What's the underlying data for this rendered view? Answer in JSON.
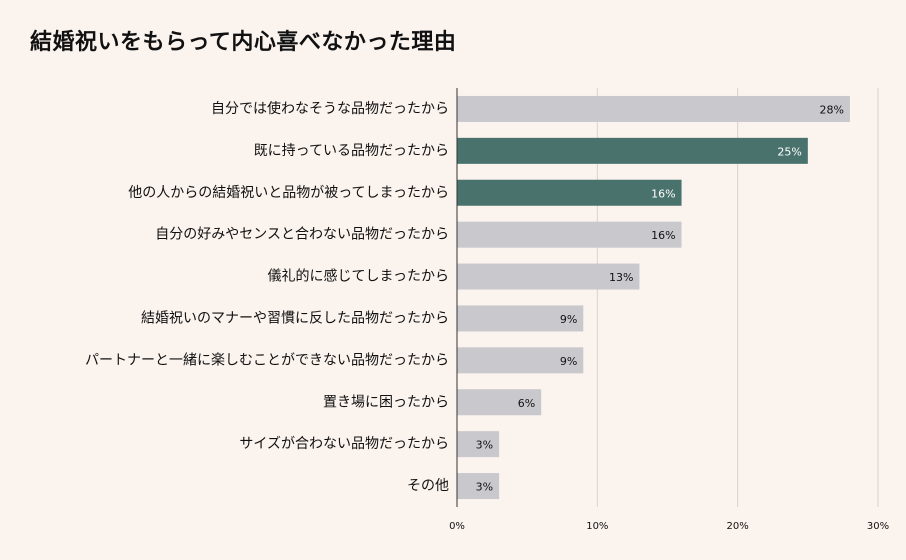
{
  "chart_data": {
    "type": "bar",
    "orientation": "horizontal",
    "title": "結婚祝いをもらって内心喜べなかった理由",
    "categories": [
      "自分では使わなそうな品物だったから",
      "既に持っている品物だったから",
      "他の人からの結婚祝いと品物が被ってしまったから",
      "自分の好みやセンスと合わない品物だったから",
      "儀礼的に感じてしまったから",
      "結婚祝いのマナーや習慣に反した品物だったから",
      "パートナーと一緒に楽しむことができない品物だったから",
      "置き場に困ったから",
      "サイズが合わない品物だったから",
      "その他"
    ],
    "values": [
      28,
      25,
      16,
      16,
      13,
      9,
      9,
      6,
      3,
      3
    ],
    "value_labels": [
      "28%",
      "25%",
      "16%",
      "16%",
      "13%",
      "9%",
      "9%",
      "6%",
      "3%",
      "3%"
    ],
    "highlighted": [
      false,
      true,
      true,
      false,
      false,
      false,
      false,
      false,
      false,
      false
    ],
    "xlim": [
      0,
      30
    ],
    "xticks": [
      0,
      10,
      20,
      30
    ],
    "xtick_labels": [
      "0%",
      "10%",
      "20%",
      "30%"
    ],
    "grid": "vertical",
    "colors": {
      "background": "#fbf3ee",
      "bar_default": "#c9c8cc",
      "bar_highlight": "#4a726d",
      "label_on_default": "#111111",
      "label_on_highlight": "#ffffff",
      "gridline": "#d9d2ce",
      "axis": "#333333"
    }
  }
}
